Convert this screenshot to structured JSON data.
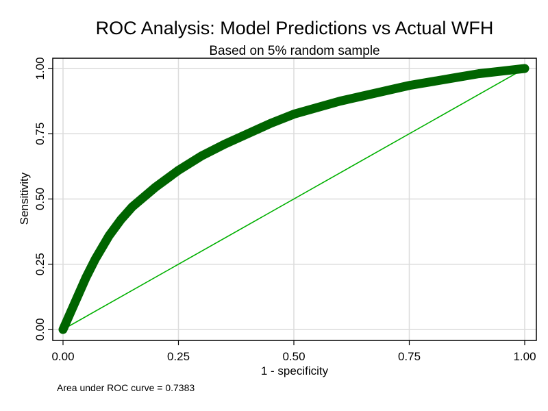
{
  "chart_data": {
    "type": "line",
    "title": "ROC Analysis: Model Predictions vs Actual WFH",
    "subtitle": "Based on 5% random sample",
    "xlabel": "1 - specificity",
    "ylabel": "Sensitivity",
    "xlim": [
      0,
      1
    ],
    "ylim": [
      0,
      1
    ],
    "x_ticks": [
      "0.00",
      "0.25",
      "0.50",
      "0.75",
      "1.00"
    ],
    "y_ticks": [
      "0.00",
      "0.25",
      "0.50",
      "0.75",
      "1.00"
    ],
    "grid": true,
    "note": "Area under ROC curve = 0.7383",
    "series": [
      {
        "color": "#006400",
        "x": [
          0,
          0.01,
          0.02,
          0.03,
          0.05,
          0.07,
          0.1,
          0.125,
          0.15,
          0.2,
          0.25,
          0.3,
          0.35,
          0.4,
          0.45,
          0.5,
          0.55,
          0.6,
          0.65,
          0.7,
          0.75,
          0.8,
          0.85,
          0.9,
          0.95,
          1.0
        ],
        "y": [
          0,
          0.04,
          0.08,
          0.12,
          0.2,
          0.27,
          0.36,
          0.42,
          0.47,
          0.545,
          0.61,
          0.665,
          0.71,
          0.75,
          0.79,
          0.825,
          0.85,
          0.875,
          0.895,
          0.915,
          0.935,
          0.95,
          0.965,
          0.98,
          0.99,
          1.0
        ]
      },
      {
        "color": "#00b000",
        "x": [
          0,
          1
        ],
        "y": [
          0,
          1
        ]
      }
    ]
  }
}
